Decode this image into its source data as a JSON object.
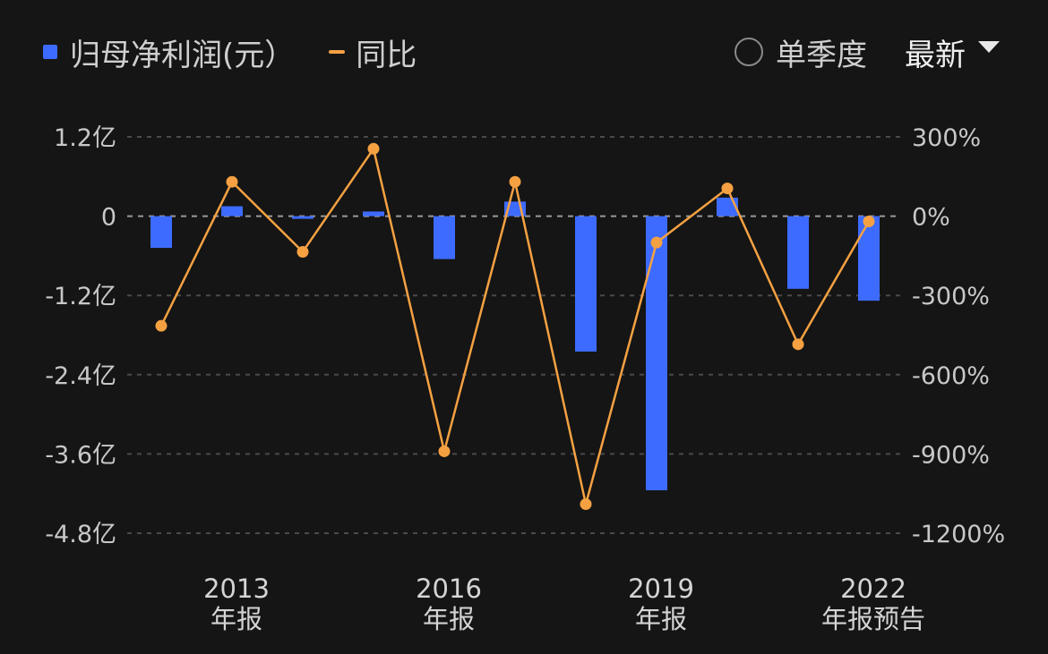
{
  "legend": {
    "bar_label": "归母净利润(元）",
    "line_label": "同比"
  },
  "controls": {
    "single_quarter_label": "单季度",
    "period_select_label": "最新"
  },
  "colors": {
    "bar": "#3d6bff",
    "line": "#f5a142",
    "grid": "#4a4a4a",
    "background": "#151515"
  },
  "chart_data": {
    "type": "bar",
    "series": [
      {
        "name": "归母净利润(元）",
        "type": "bar",
        "axis": "left",
        "unit": "亿",
        "values": [
          -0.48,
          0.15,
          -0.04,
          0.07,
          -0.65,
          0.22,
          -2.05,
          -4.15,
          0.28,
          -1.1,
          -1.28
        ]
      },
      {
        "name": "同比",
        "type": "line",
        "axis": "right",
        "unit": "%",
        "values": [
          -415,
          130,
          -135,
          255,
          -890,
          130,
          -1090,
          -100,
          105,
          -485,
          -20
        ]
      }
    ],
    "x_label_positions": [
      1,
      4,
      7,
      10
    ],
    "x_labels": [
      {
        "year": "2013",
        "sub": "年报"
      },
      {
        "year": "2016",
        "sub": "年报"
      },
      {
        "year": "2019",
        "sub": "年报"
      },
      {
        "year": "2022",
        "sub": "年报预告"
      }
    ],
    "left_axis": {
      "ticks": [
        1.2,
        0,
        -1.2,
        -2.4,
        -3.6,
        -4.8
      ],
      "tick_labels": [
        "1.2亿",
        "0",
        "-1.2亿",
        "-2.4亿",
        "-3.6亿",
        "-4.8亿"
      ],
      "ylim": [
        -4.8,
        1.2
      ]
    },
    "right_axis": {
      "ticks": [
        300,
        0,
        -300,
        -600,
        -900,
        -1200
      ],
      "tick_labels": [
        "300%",
        "0%",
        "-300%",
        "-600%",
        "-900%",
        "-1200%"
      ],
      "ylim": [
        -1200,
        300
      ]
    },
    "grid": true,
    "legend_position": "top-left"
  }
}
